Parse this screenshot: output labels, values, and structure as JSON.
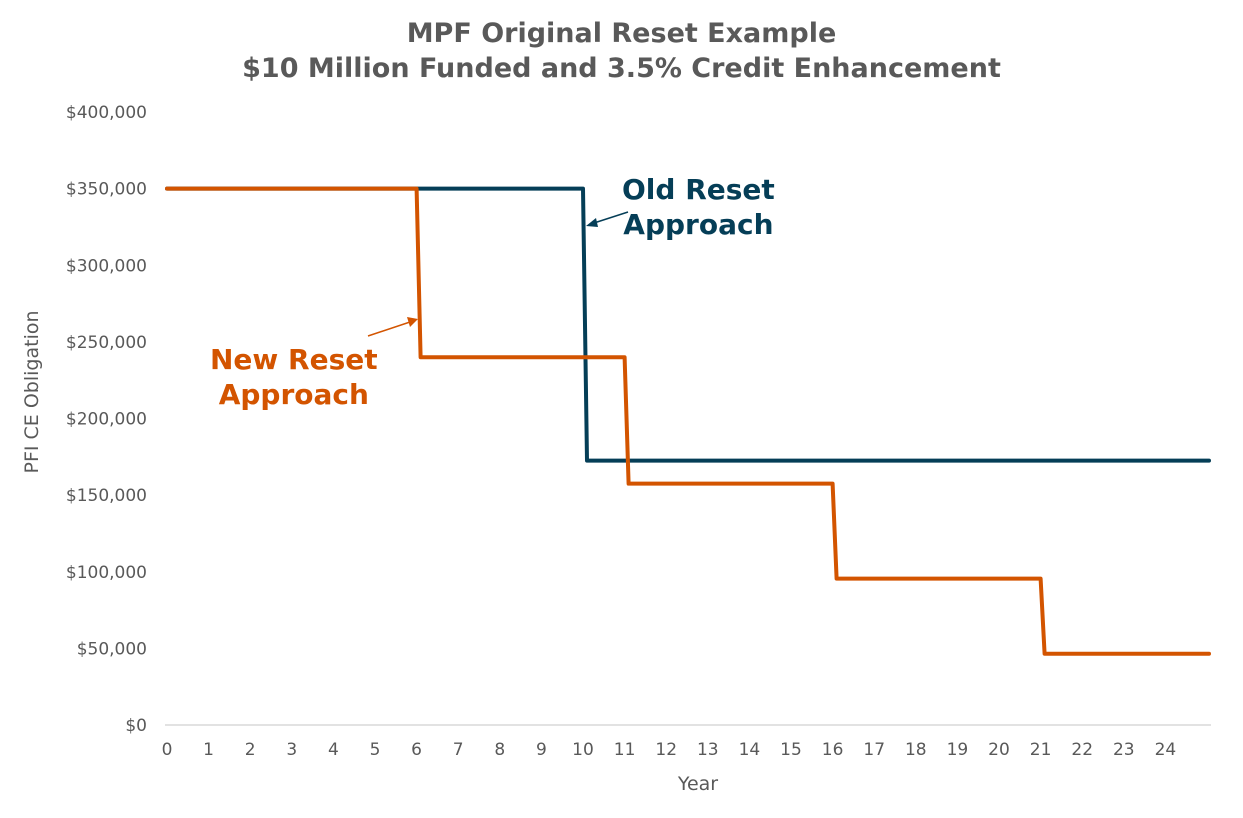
{
  "title": {
    "line1": "MPF Original Reset Example",
    "line2": "$10 Million Funded and 3.5% Credit Enhancement"
  },
  "annotations": {
    "old": {
      "line1": "Old Reset",
      "line2": "Approach",
      "color": "#053E57"
    },
    "new": {
      "line1": "New Reset",
      "line2": "Approach",
      "color": "#D35400"
    }
  },
  "chart_data": {
    "type": "line",
    "subtype": "step",
    "title": "MPF Original Reset Example $10 Million Funded and 3.5% Credit Enhancement",
    "xlabel": "Year",
    "ylabel": "PFI CE Obligation",
    "ylim": [
      0,
      400000
    ],
    "xlim": [
      0,
      25
    ],
    "grid": false,
    "legend": "none (inline annotations)",
    "x_ticks": [
      "0",
      "1",
      "2",
      "3",
      "4",
      "5",
      "6",
      "7",
      "8",
      "9",
      "10",
      "11",
      "12",
      "13",
      "14",
      "15",
      "16",
      "17",
      "18",
      "19",
      "20",
      "21",
      "22",
      "23",
      "24"
    ],
    "y_ticks": [
      "$0",
      "$50,000",
      "$100,000",
      "$150,000",
      "$200,000",
      "$250,000",
      "$300,000",
      "$350,000",
      "$400,000"
    ],
    "series": [
      {
        "name": "Old Reset Approach",
        "color": "#053E57",
        "steps": [
          {
            "from_year": 0,
            "to_year": 10,
            "value": 350000
          },
          {
            "from_year": 10,
            "to_year": 25,
            "value": 172500
          }
        ]
      },
      {
        "name": "New Reset Approach",
        "color": "#D35400",
        "steps": [
          {
            "from_year": 0,
            "to_year": 6,
            "value": 350000
          },
          {
            "from_year": 6,
            "to_year": 11,
            "value": 240000
          },
          {
            "from_year": 11,
            "to_year": 16,
            "value": 157500
          },
          {
            "from_year": 16,
            "to_year": 21,
            "value": 95500
          },
          {
            "from_year": 21,
            "to_year": 25,
            "value": 46500
          }
        ]
      }
    ]
  }
}
